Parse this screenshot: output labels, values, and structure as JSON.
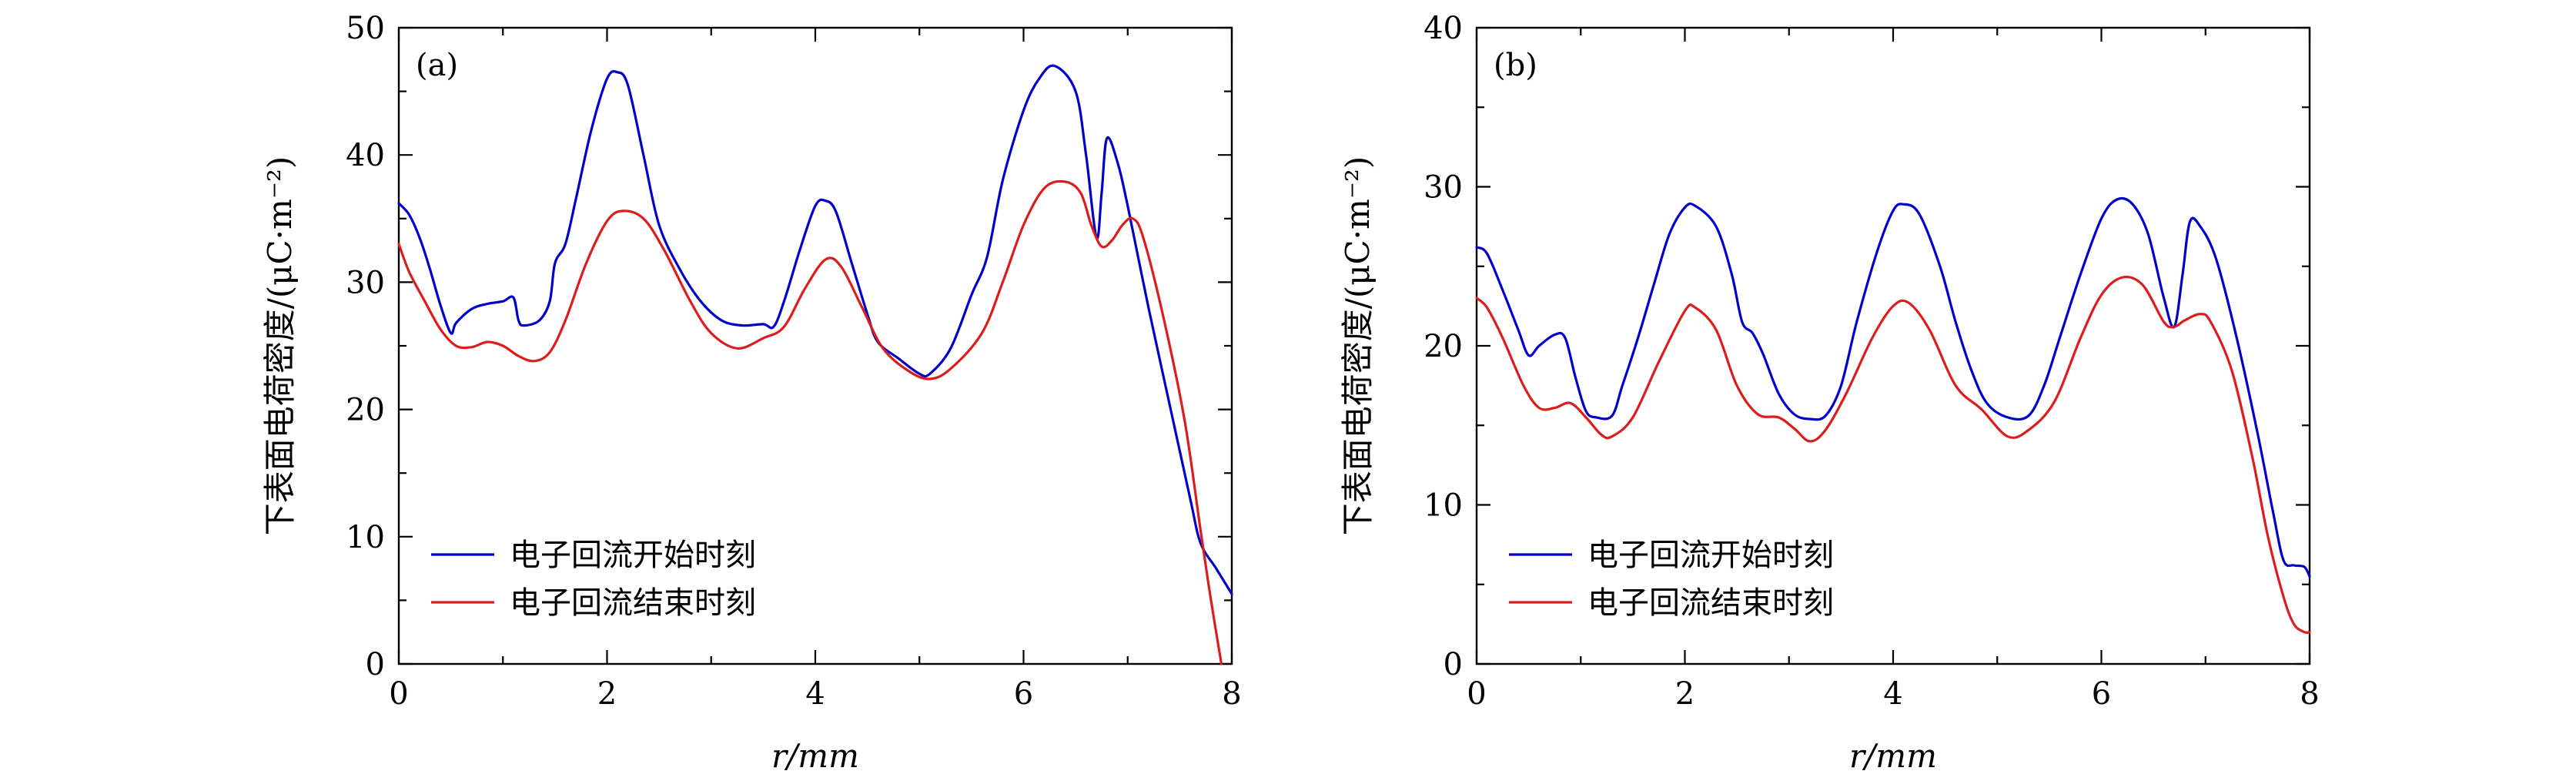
{
  "chart_data": [
    {
      "type": "line",
      "panel_label": "(a)",
      "xlabel": "r/mm",
      "ylabel": "下表面电荷密度/(μC·m⁻²)",
      "xlim": [
        0,
        8
      ],
      "ylim": [
        0,
        50
      ],
      "xticks": [
        0,
        2,
        4,
        6,
        8
      ],
      "yticks": [
        0,
        10,
        20,
        30,
        40,
        50
      ],
      "grid": false,
      "legend_position": "bottom-left",
      "series": [
        {
          "name": "电子回流开始时刻",
          "color": "#0000cc",
          "points": [
            [
              0,
              36.2
            ],
            [
              0.1,
              35.3
            ],
            [
              0.2,
              33.5
            ],
            [
              0.3,
              31.0
            ],
            [
              0.4,
              28.2
            ],
            [
              0.5,
              26.0
            ],
            [
              0.55,
              26.8
            ],
            [
              0.7,
              27.9
            ],
            [
              0.85,
              28.3
            ],
            [
              1.0,
              28.5
            ],
            [
              1.1,
              28.8
            ],
            [
              1.15,
              27.0
            ],
            [
              1.2,
              26.6
            ],
            [
              1.35,
              27.0
            ],
            [
              1.45,
              28.5
            ],
            [
              1.5,
              31.5
            ],
            [
              1.6,
              33.0
            ],
            [
              1.7,
              36.5
            ],
            [
              1.85,
              42.0
            ],
            [
              2.0,
              46.0
            ],
            [
              2.1,
              46.5
            ],
            [
              2.2,
              45.5
            ],
            [
              2.35,
              40.0
            ],
            [
              2.5,
              34.5
            ],
            [
              2.7,
              31.0
            ],
            [
              2.9,
              28.5
            ],
            [
              3.1,
              27.0
            ],
            [
              3.3,
              26.6
            ],
            [
              3.5,
              26.7
            ],
            [
              3.6,
              26.5
            ],
            [
              3.7,
              28.5
            ],
            [
              3.85,
              32.5
            ],
            [
              4.0,
              36.0
            ],
            [
              4.1,
              36.4
            ],
            [
              4.2,
              35.5
            ],
            [
              4.35,
              31.5
            ],
            [
              4.5,
              27.5
            ],
            [
              4.6,
              25.3
            ],
            [
              4.8,
              24.0
            ],
            [
              5.0,
              22.8
            ],
            [
              5.1,
              22.8
            ],
            [
              5.3,
              24.8
            ],
            [
              5.5,
              29.0
            ],
            [
              5.65,
              32.0
            ],
            [
              5.8,
              38.0
            ],
            [
              6.0,
              43.5
            ],
            [
              6.15,
              46.0
            ],
            [
              6.3,
              47.0
            ],
            [
              6.5,
              45.0
            ],
            [
              6.6,
              40.0
            ],
            [
              6.7,
              33.5
            ],
            [
              6.75,
              37.0
            ],
            [
              6.8,
              41.3
            ],
            [
              6.9,
              39.5
            ],
            [
              7.0,
              36.0
            ],
            [
              7.2,
              28.0
            ],
            [
              7.4,
              20.5
            ],
            [
              7.6,
              13.0
            ],
            [
              7.7,
              9.5
            ],
            [
              7.85,
              7.5
            ],
            [
              8.0,
              5.5
            ]
          ]
        },
        {
          "name": "电子回流结束时刻",
          "color": "#dd1c1c",
          "points": [
            [
              0,
              33.0
            ],
            [
              0.1,
              30.8
            ],
            [
              0.25,
              28.5
            ],
            [
              0.4,
              26.3
            ],
            [
              0.55,
              25.0
            ],
            [
              0.7,
              24.9
            ],
            [
              0.85,
              25.3
            ],
            [
              1.0,
              25.0
            ],
            [
              1.15,
              24.2
            ],
            [
              1.3,
              23.8
            ],
            [
              1.45,
              24.5
            ],
            [
              1.6,
              27.0
            ],
            [
              1.8,
              31.5
            ],
            [
              2.0,
              34.8
            ],
            [
              2.15,
              35.6
            ],
            [
              2.35,
              35.0
            ],
            [
              2.55,
              32.5
            ],
            [
              2.8,
              28.5
            ],
            [
              3.0,
              26.0
            ],
            [
              3.25,
              24.8
            ],
            [
              3.5,
              25.6
            ],
            [
              3.7,
              26.5
            ],
            [
              3.9,
              29.5
            ],
            [
              4.1,
              31.8
            ],
            [
              4.25,
              31.2
            ],
            [
              4.45,
              28.0
            ],
            [
              4.65,
              24.8
            ],
            [
              4.9,
              23.0
            ],
            [
              5.1,
              22.4
            ],
            [
              5.3,
              23.2
            ],
            [
              5.6,
              26.0
            ],
            [
              5.8,
              30.0
            ],
            [
              6.0,
              34.5
            ],
            [
              6.2,
              37.4
            ],
            [
              6.4,
              37.9
            ],
            [
              6.55,
              37.0
            ],
            [
              6.65,
              34.5
            ],
            [
              6.75,
              32.8
            ],
            [
              6.85,
              33.3
            ],
            [
              6.95,
              34.5
            ],
            [
              7.05,
              35.0
            ],
            [
              7.15,
              33.5
            ],
            [
              7.35,
              27.0
            ],
            [
              7.55,
              19.0
            ],
            [
              7.7,
              10.5
            ],
            [
              7.8,
              5.0
            ],
            [
              7.9,
              0.0
            ]
          ]
        }
      ]
    },
    {
      "type": "line",
      "panel_label": "(b)",
      "xlabel": "r/mm",
      "ylabel": "下表面电荷密度/(μC·m⁻²)",
      "xlim": [
        0,
        8
      ],
      "ylim": [
        0,
        40
      ],
      "xticks": [
        0,
        2,
        4,
        6,
        8
      ],
      "yticks": [
        0,
        10,
        20,
        30,
        40
      ],
      "grid": false,
      "legend_position": "bottom-left",
      "series": [
        {
          "name": "电子回流开始时刻",
          "color": "#0000cc",
          "points": [
            [
              0,
              26.2
            ],
            [
              0.1,
              25.8
            ],
            [
              0.25,
              23.5
            ],
            [
              0.4,
              21.0
            ],
            [
              0.5,
              19.4
            ],
            [
              0.6,
              20.0
            ],
            [
              0.75,
              20.7
            ],
            [
              0.85,
              20.5
            ],
            [
              0.95,
              18.0
            ],
            [
              1.05,
              15.9
            ],
            [
              1.15,
              15.5
            ],
            [
              1.3,
              15.6
            ],
            [
              1.4,
              17.5
            ],
            [
              1.55,
              20.5
            ],
            [
              1.7,
              23.8
            ],
            [
              1.85,
              27.0
            ],
            [
              2.0,
              28.7
            ],
            [
              2.1,
              28.8
            ],
            [
              2.3,
              27.5
            ],
            [
              2.45,
              24.5
            ],
            [
              2.55,
              21.5
            ],
            [
              2.65,
              20.8
            ],
            [
              2.75,
              19.5
            ],
            [
              2.9,
              17.0
            ],
            [
              3.05,
              15.7
            ],
            [
              3.2,
              15.4
            ],
            [
              3.35,
              15.6
            ],
            [
              3.5,
              17.5
            ],
            [
              3.65,
              21.5
            ],
            [
              3.85,
              26.0
            ],
            [
              4.0,
              28.5
            ],
            [
              4.1,
              28.9
            ],
            [
              4.25,
              28.3
            ],
            [
              4.45,
              25.0
            ],
            [
              4.6,
              21.5
            ],
            [
              4.75,
              18.5
            ],
            [
              4.9,
              16.4
            ],
            [
              5.1,
              15.5
            ],
            [
              5.3,
              15.6
            ],
            [
              5.45,
              17.5
            ],
            [
              5.6,
              20.5
            ],
            [
              5.8,
              24.5
            ],
            [
              6.0,
              28.0
            ],
            [
              6.15,
              29.2
            ],
            [
              6.3,
              28.9
            ],
            [
              6.45,
              27.0
            ],
            [
              6.6,
              23.0
            ],
            [
              6.7,
              21.2
            ],
            [
              6.78,
              24.5
            ],
            [
              6.85,
              27.8
            ],
            [
              6.95,
              27.5
            ],
            [
              7.1,
              25.5
            ],
            [
              7.3,
              20.5
            ],
            [
              7.5,
              14.5
            ],
            [
              7.65,
              9.5
            ],
            [
              7.75,
              6.5
            ],
            [
              7.85,
              6.2
            ],
            [
              7.95,
              6.1
            ],
            [
              8.0,
              5.5
            ]
          ]
        },
        {
          "name": "电子回流结束时刻",
          "color": "#dd1c1c",
          "points": [
            [
              0,
              23.0
            ],
            [
              0.1,
              22.4
            ],
            [
              0.25,
              20.5
            ],
            [
              0.45,
              17.5
            ],
            [
              0.6,
              16.1
            ],
            [
              0.75,
              16.1
            ],
            [
              0.9,
              16.4
            ],
            [
              1.05,
              15.5
            ],
            [
              1.2,
              14.4
            ],
            [
              1.3,
              14.3
            ],
            [
              1.5,
              15.5
            ],
            [
              1.75,
              19.0
            ],
            [
              2.0,
              22.2
            ],
            [
              2.1,
              22.4
            ],
            [
              2.3,
              21.0
            ],
            [
              2.5,
              17.5
            ],
            [
              2.7,
              15.7
            ],
            [
              2.9,
              15.5
            ],
            [
              3.05,
              14.8
            ],
            [
              3.2,
              14.0
            ],
            [
              3.35,
              14.7
            ],
            [
              3.55,
              17.0
            ],
            [
              3.8,
              20.5
            ],
            [
              4.0,
              22.5
            ],
            [
              4.15,
              22.7
            ],
            [
              4.35,
              21.0
            ],
            [
              4.6,
              17.5
            ],
            [
              4.85,
              16.0
            ],
            [
              5.1,
              14.3
            ],
            [
              5.3,
              14.7
            ],
            [
              5.55,
              16.5
            ],
            [
              5.8,
              20.5
            ],
            [
              6.0,
              23.2
            ],
            [
              6.2,
              24.3
            ],
            [
              6.4,
              23.8
            ],
            [
              6.6,
              21.5
            ],
            [
              6.7,
              21.2
            ],
            [
              6.8,
              21.6
            ],
            [
              6.95,
              22.0
            ],
            [
              7.05,
              21.5
            ],
            [
              7.25,
              18.5
            ],
            [
              7.45,
              13.0
            ],
            [
              7.6,
              8.0
            ],
            [
              7.75,
              4.2
            ],
            [
              7.85,
              2.5
            ],
            [
              7.95,
              2.0
            ],
            [
              8.0,
              2.0
            ]
          ]
        }
      ]
    }
  ]
}
